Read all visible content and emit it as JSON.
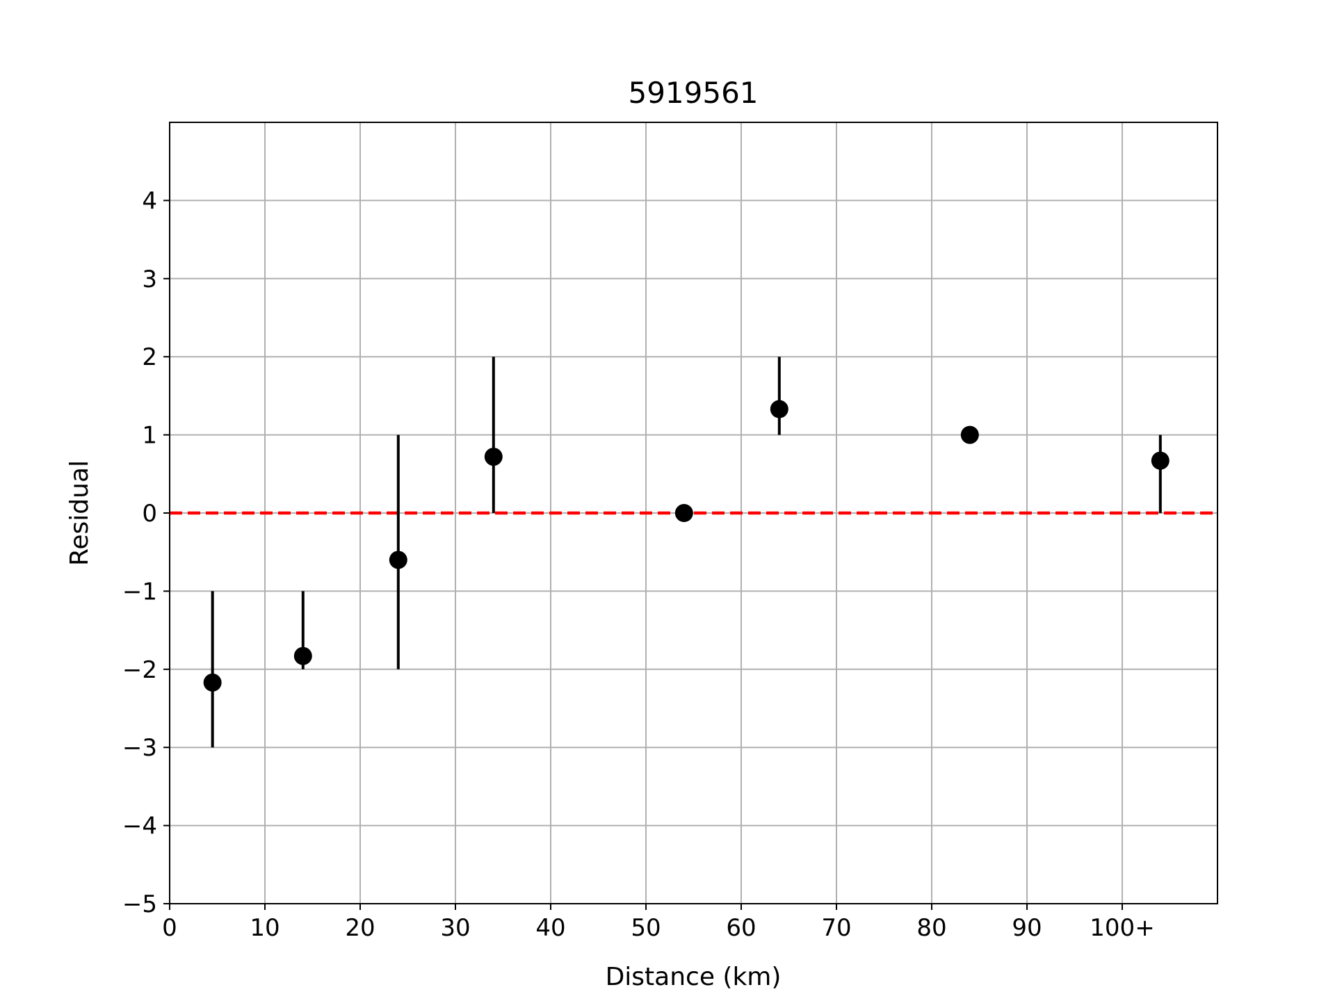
{
  "chart_data": {
    "type": "scatter",
    "title": "5919561",
    "xlabel": "Distance (km)",
    "ylabel": "Residual",
    "xlim": [
      0,
      110
    ],
    "ylim": [
      -5,
      5
    ],
    "x_ticks": [
      {
        "value": 0,
        "label": "0"
      },
      {
        "value": 10,
        "label": "10"
      },
      {
        "value": 20,
        "label": "20"
      },
      {
        "value": 30,
        "label": "30"
      },
      {
        "value": 40,
        "label": "40"
      },
      {
        "value": 50,
        "label": "50"
      },
      {
        "value": 60,
        "label": "60"
      },
      {
        "value": 70,
        "label": "70"
      },
      {
        "value": 80,
        "label": "80"
      },
      {
        "value": 90,
        "label": "90"
      },
      {
        "value": 100,
        "label": "100+"
      }
    ],
    "y_ticks": [
      {
        "value": 4,
        "label": "4"
      },
      {
        "value": 3,
        "label": "3"
      },
      {
        "value": 2,
        "label": "2"
      },
      {
        "value": 1,
        "label": "1"
      },
      {
        "value": 0,
        "label": "0"
      },
      {
        "value": -1,
        "label": "−1"
      },
      {
        "value": -2,
        "label": "−2"
      },
      {
        "value": -3,
        "label": "−3"
      },
      {
        "value": -4,
        "label": "−4"
      },
      {
        "value": -5,
        "label": "−5"
      }
    ],
    "grid": true,
    "reference_line": {
      "y": 0,
      "color": "#ff0000",
      "style": "dashed"
    },
    "points": [
      {
        "x": 4.5,
        "y": -2.17,
        "err_low": -3,
        "err_high": -1
      },
      {
        "x": 14,
        "y": -1.83,
        "err_low": -2,
        "err_high": -1
      },
      {
        "x": 24,
        "y": -0.6,
        "err_low": -2,
        "err_high": 1
      },
      {
        "x": 34,
        "y": 0.72,
        "err_low": 0,
        "err_high": 2
      },
      {
        "x": 54,
        "y": 0,
        "err_low": 0,
        "err_high": 0
      },
      {
        "x": 64,
        "y": 1.33,
        "err_low": 1,
        "err_high": 2
      },
      {
        "x": 84,
        "y": 1,
        "err_low": 1,
        "err_high": 1
      },
      {
        "x": 104,
        "y": 0.67,
        "err_low": 0,
        "err_high": 1
      }
    ],
    "colors": {
      "points": "#000000",
      "grid": "#b0b0b0",
      "reference": "#ff0000"
    }
  }
}
